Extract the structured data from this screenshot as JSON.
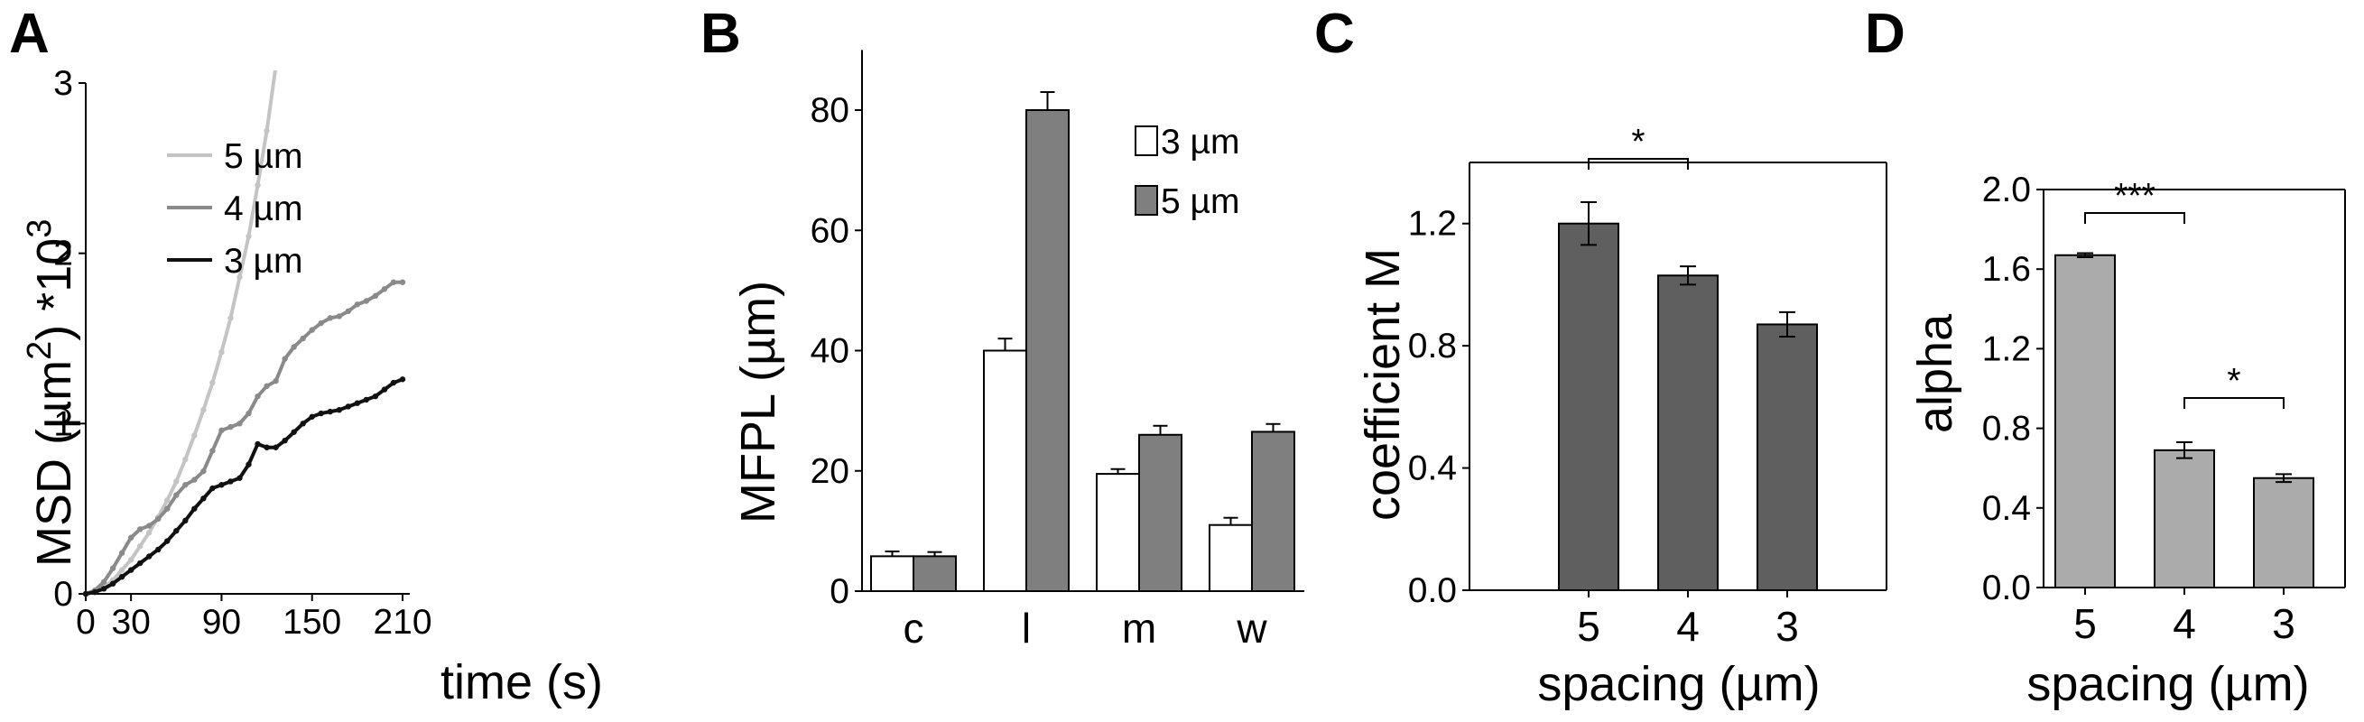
{
  "colors": {
    "white_bar": "#ffffff",
    "bar_b_5um": "#7f7f7f",
    "bar_c": "#5f5f5f",
    "bar_d": "#ababab",
    "line_5um": "#c4c4c4",
    "line_4um": "#8a8a8a",
    "line_3um": "#111111",
    "axis": "#000000"
  },
  "chart_data": [
    {
      "panel": "A",
      "type": "line",
      "xlabel": "time (s)",
      "ylabel": "MSD (µm",
      "ylabel_sup": "2",
      "ylabel_suffix": ") *10",
      "ylabel_sup2": "3",
      "xlim": [
        0,
        210
      ],
      "ylim": [
        0,
        3
      ],
      "xticks": [
        0,
        30,
        90,
        150,
        210
      ],
      "yticks": [
        0,
        1,
        2,
        3
      ],
      "legend": "top-left",
      "series": [
        {
          "name": "5 µm",
          "color": "#c4c4c4",
          "x": [
            0,
            6,
            12,
            18,
            24,
            30,
            36,
            42,
            48,
            54,
            60,
            66,
            72,
            78,
            84,
            90,
            96,
            102,
            108,
            114,
            120,
            126
          ],
          "y": [
            0,
            0.01,
            0.04,
            0.08,
            0.14,
            0.2,
            0.28,
            0.36,
            0.45,
            0.55,
            0.66,
            0.79,
            0.93,
            1.08,
            1.24,
            1.42,
            1.62,
            1.86,
            2.1,
            2.4,
            2.72,
            3.1
          ]
        },
        {
          "name": "4 µm",
          "color": "#8a8a8a",
          "x": [
            0,
            6,
            12,
            18,
            24,
            30,
            36,
            42,
            48,
            54,
            60,
            66,
            72,
            78,
            84,
            90,
            96,
            102,
            108,
            114,
            120,
            126,
            132,
            138,
            144,
            150,
            156,
            162,
            168,
            174,
            180,
            186,
            192,
            198,
            204,
            210
          ],
          "y": [
            0,
            0.02,
            0.07,
            0.15,
            0.24,
            0.33,
            0.38,
            0.4,
            0.44,
            0.5,
            0.58,
            0.64,
            0.67,
            0.72,
            0.84,
            0.96,
            0.98,
            1.0,
            1.06,
            1.16,
            1.22,
            1.25,
            1.38,
            1.45,
            1.5,
            1.55,
            1.59,
            1.62,
            1.63,
            1.66,
            1.7,
            1.72,
            1.75,
            1.79,
            1.83,
            1.83
          ]
        },
        {
          "name": "3 µm",
          "color": "#111111",
          "x": [
            0,
            6,
            12,
            18,
            24,
            30,
            36,
            42,
            48,
            54,
            60,
            66,
            72,
            78,
            84,
            90,
            96,
            102,
            108,
            114,
            120,
            126,
            132,
            138,
            144,
            150,
            156,
            162,
            168,
            174,
            180,
            186,
            192,
            198,
            204,
            210
          ],
          "y": [
            0,
            0.01,
            0.03,
            0.06,
            0.1,
            0.14,
            0.18,
            0.22,
            0.26,
            0.31,
            0.37,
            0.43,
            0.5,
            0.56,
            0.62,
            0.64,
            0.66,
            0.68,
            0.76,
            0.88,
            0.86,
            0.86,
            0.9,
            0.95,
            1.0,
            1.04,
            1.06,
            1.07,
            1.08,
            1.1,
            1.12,
            1.14,
            1.16,
            1.2,
            1.24,
            1.26
          ]
        }
      ]
    },
    {
      "panel": "B",
      "type": "bar",
      "ylabel": "MFPL (µm)",
      "ylim": [
        0,
        90
      ],
      "yticks": [
        0,
        20,
        40,
        60,
        80
      ],
      "categories": [
        "c",
        "l",
        "m",
        "w"
      ],
      "legend": "top-right",
      "series": [
        {
          "name": "3 µm",
          "color": "#ffffff",
          "values": [
            5.8,
            40,
            19.5,
            11
          ],
          "errors": [
            0.8,
            2.0,
            0.8,
            1.2
          ]
        },
        {
          "name": "5 µm",
          "color": "#7f7f7f",
          "values": [
            5.8,
            80,
            26,
            26.5
          ],
          "errors": [
            0.7,
            3.0,
            1.5,
            1.3
          ]
        }
      ]
    },
    {
      "panel": "C",
      "type": "bar",
      "ylabel": "coefficient M",
      "xlabel": "spacing (µm)",
      "ylim": [
        0,
        1.4
      ],
      "yticks": [
        "0.0",
        "0.4",
        "0.8",
        "1.2"
      ],
      "categories": [
        "5",
        "4",
        "3"
      ],
      "values": [
        1.2,
        1.03,
        0.87
      ],
      "errors": [
        0.07,
        0.03,
        0.04
      ],
      "color": "#5f5f5f",
      "significance": [
        {
          "from": 0,
          "to": 1,
          "label": "*"
        }
      ]
    },
    {
      "panel": "D",
      "type": "bar",
      "ylabel": "alpha",
      "xlabel": "spacing (µm)",
      "ylim": [
        0,
        2.0
      ],
      "yticks": [
        "0.0",
        "0.4",
        "0.8",
        "1.2",
        "1.6",
        "2.0"
      ],
      "categories": [
        "5",
        "4",
        "3"
      ],
      "values": [
        1.67,
        0.69,
        0.55
      ],
      "errors": [
        0.01,
        0.04,
        0.02
      ],
      "color": "#ababab",
      "significance": [
        {
          "from": 0,
          "to": 1,
          "label": "***"
        },
        {
          "from": 1,
          "to": 2,
          "label": "*"
        }
      ]
    }
  ]
}
